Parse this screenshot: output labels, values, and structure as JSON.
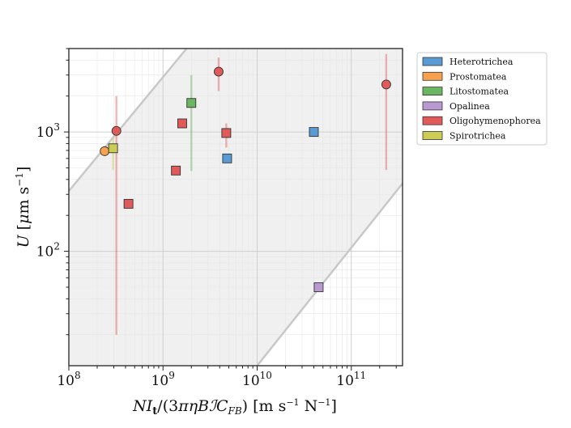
{
  "chart_data": {
    "type": "scatter",
    "xscale": "log",
    "yscale": "log",
    "xlim": [
      100000000.0,
      350000000000.0
    ],
    "ylim": [
      11,
      5000
    ],
    "xlabel": "NI_t/(3πηBℐC_FB) [m s⁻¹ N⁻¹]",
    "ylabel": "U [μm s⁻¹]",
    "x_ticks": [
      {
        "value": 100000000.0,
        "base": "10",
        "exp": "8"
      },
      {
        "value": 1000000000.0,
        "base": "10",
        "exp": "9"
      },
      {
        "value": 10000000000.0,
        "base": "10",
        "exp": "10"
      },
      {
        "value": 100000000000.0,
        "base": "10",
        "exp": "11"
      }
    ],
    "y_ticks": [
      {
        "value": 100,
        "base": "10",
        "exp": "2"
      },
      {
        "value": 1000,
        "base": "10",
        "exp": "3"
      }
    ],
    "grid": true,
    "shaded_band": {
      "upper_line": [
        [
          100000000.0,
          320
        ],
        [
          1780000000.0,
          5000
        ]
      ],
      "lower_line": [
        [
          10000000000.0,
          11
        ],
        [
          350000000000.0,
          370
        ]
      ],
      "color": "#f0f0f0",
      "line_color": "#c8c8c8"
    },
    "legend_position": "outside-right",
    "series": [
      {
        "name": "Heterotrichea",
        "color": "#5b9bd5",
        "points": [
          {
            "x": 4800000000.0,
            "y": 600,
            "marker": "square"
          },
          {
            "x": 40000000000.0,
            "y": 1000,
            "marker": "square"
          }
        ]
      },
      {
        "name": "Prostomatea",
        "color": "#f7a24f",
        "points": [
          {
            "x": 240000000.0,
            "y": 690,
            "marker": "circle"
          }
        ]
      },
      {
        "name": "Litostomatea",
        "color": "#6ab662",
        "points": [
          {
            "x": 2000000000.0,
            "y": 1750,
            "marker": "square",
            "err": [
              470,
              3000
            ]
          }
        ]
      },
      {
        "name": "Opalinea",
        "color": "#b89ad0",
        "points": [
          {
            "x": 45000000000.0,
            "y": 50,
            "marker": "square"
          }
        ]
      },
      {
        "name": "Oligohymenophorea",
        "color": "#e05a5a",
        "points": [
          {
            "x": 320000000.0,
            "y": 1020,
            "marker": "circle",
            "err": [
              20,
              2000
            ]
          },
          {
            "x": 430000000.0,
            "y": 250,
            "marker": "square"
          },
          {
            "x": 1370000000.0,
            "y": 475,
            "marker": "square"
          },
          {
            "x": 1600000000.0,
            "y": 1180,
            "marker": "square"
          },
          {
            "x": 3900000000.0,
            "y": 3200,
            "marker": "circle",
            "err": [
              2200,
              4200
            ]
          },
          {
            "x": 4700000000.0,
            "y": 980,
            "marker": "square",
            "err": [
              740,
              1180
            ]
          },
          {
            "x": 235000000000.0,
            "y": 2500,
            "marker": "circle",
            "err": [
              480,
              4500
            ]
          }
        ]
      },
      {
        "name": "Spirotrichea",
        "color": "#cccc55",
        "points": [
          {
            "x": 295000000.0,
            "y": 730,
            "marker": "square",
            "err": [
              480,
              900
            ]
          }
        ]
      }
    ]
  }
}
